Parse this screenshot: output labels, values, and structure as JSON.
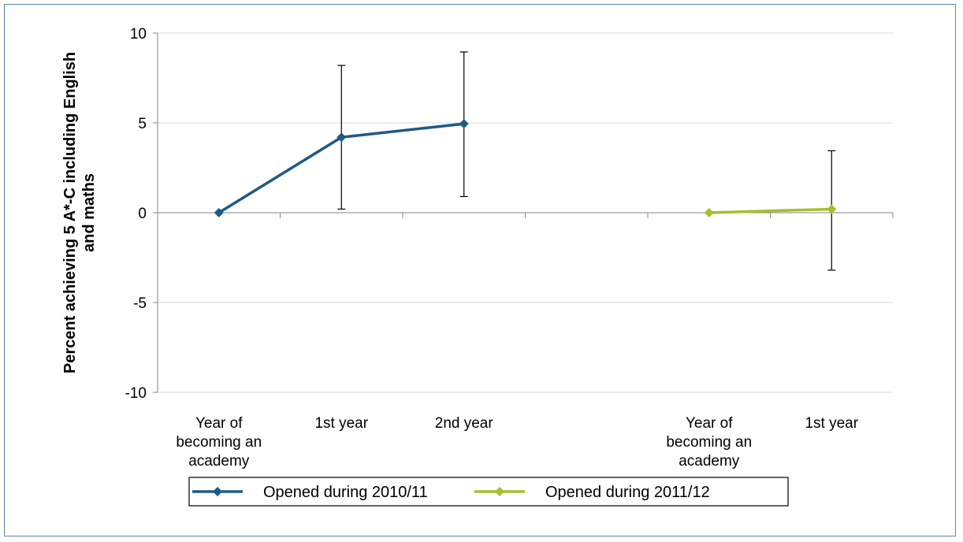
{
  "chart_data": {
    "type": "line",
    "ylabel_lines": [
      "Percent achieving 5 A*-C including English",
      "and maths"
    ],
    "ylim": [
      -10,
      10
    ],
    "yticks": [
      10,
      5,
      0,
      -5,
      -10
    ],
    "grid": true,
    "legend_position": "bottom",
    "categories": [
      [
        "Year of",
        "becoming an",
        "academy"
      ],
      [
        "1st year"
      ],
      [
        "2nd year"
      ],
      [
        ""
      ],
      [
        "Year of",
        "becoming an",
        "academy"
      ],
      [
        "1st year"
      ]
    ],
    "series": [
      {
        "name": "Opened during 2010/11",
        "color": "#1f5a86",
        "points": [
          {
            "category_index": 0,
            "value": 0
          },
          {
            "category_index": 1,
            "value": 4.2,
            "error_low": 0.2,
            "error_high": 8.2
          },
          {
            "category_index": 2,
            "value": 4.95,
            "error_low": 0.9,
            "error_high": 8.95
          }
        ]
      },
      {
        "name": "Opened during 2011/12",
        "color": "#a6bf2d",
        "points": [
          {
            "category_index": 4,
            "value": 0
          },
          {
            "category_index": 5,
            "value": 0.2,
            "error_low": -3.2,
            "error_high": 3.45
          }
        ]
      }
    ]
  }
}
